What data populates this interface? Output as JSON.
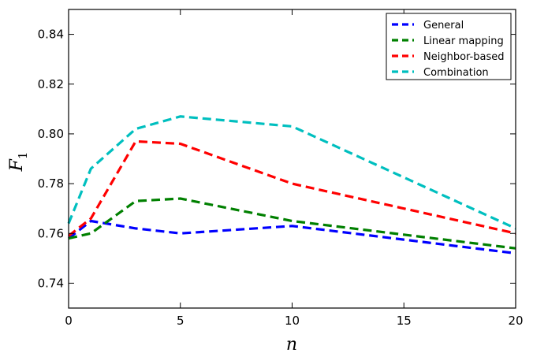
{
  "chart_data": {
    "type": "line",
    "xlabel": "n",
    "ylabel_main": "F",
    "ylabel_sub": "1",
    "xlim": [
      0,
      20
    ],
    "ylim": [
      0.73,
      0.85
    ],
    "x_ticks": [
      0,
      5,
      10,
      15,
      20
    ],
    "x_tick_labels": [
      "0",
      "5",
      "10",
      "15",
      "20"
    ],
    "y_ticks": [
      0.74,
      0.76,
      0.78,
      0.8,
      0.82,
      0.84
    ],
    "y_tick_labels": [
      "0.74",
      "0.76",
      "0.78",
      "0.80",
      "0.82",
      "0.84"
    ],
    "grid": false,
    "legend_position": "top-right",
    "line_style": "dashed",
    "series": [
      {
        "name": "General",
        "color": "#0000ff",
        "points": [
          [
            0,
            0.758
          ],
          [
            1,
            0.765
          ],
          [
            3,
            0.762
          ],
          [
            5,
            0.76
          ],
          [
            10,
            0.763
          ],
          [
            20,
            0.752
          ]
        ]
      },
      {
        "name": "Linear mapping",
        "color": "#008000",
        "points": [
          [
            0,
            0.758
          ],
          [
            1,
            0.76
          ],
          [
            3,
            0.773
          ],
          [
            5,
            0.774
          ],
          [
            10,
            0.765
          ],
          [
            20,
            0.754
          ]
        ]
      },
      {
        "name": "Neighbor-based",
        "color": "#ff0000",
        "points": [
          [
            0,
            0.759
          ],
          [
            1,
            0.766
          ],
          [
            3,
            0.797
          ],
          [
            5,
            0.796
          ],
          [
            10,
            0.78
          ],
          [
            20,
            0.76
          ]
        ]
      },
      {
        "name": "Combination",
        "color": "#00bfbf",
        "points": [
          [
            0,
            0.764
          ],
          [
            1,
            0.786
          ],
          [
            3,
            0.802
          ],
          [
            5,
            0.807
          ],
          [
            10,
            0.803
          ],
          [
            20,
            0.762
          ]
        ]
      }
    ]
  }
}
